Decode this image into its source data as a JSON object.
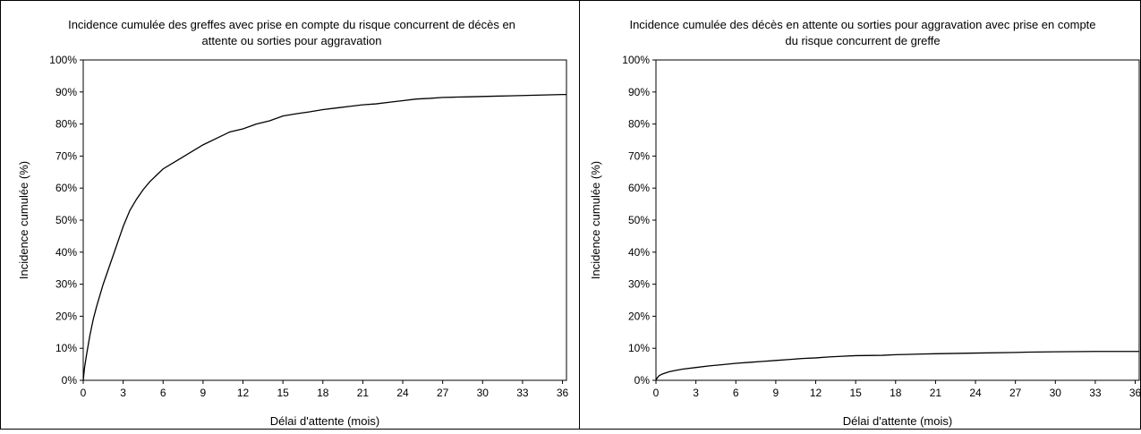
{
  "panels": [
    {
      "title_line1": "Incidence cumulée des greffes avec prise en compte du risque concurrent de décès en",
      "title_line2": "attente ou sorties pour aggravation",
      "ylabel": "Incidence cumulée (%)",
      "xlabel": "Délai d'attente (mois)"
    },
    {
      "title_line1": "Incidence cumulée des décès en attente ou sorties pour aggravation avec prise en compte",
      "title_line2": "du risque concurrent de greffe",
      "ylabel": "Incidence cumulée (%)",
      "xlabel": "Délai d'attente (mois)"
    }
  ],
  "chart_data": [
    {
      "type": "line",
      "title": "Incidence cumulée des greffes avec prise en compte du risque concurrent de décès en attente ou sorties pour aggravation",
      "xlabel": "Délai d'attente (mois)",
      "ylabel": "Incidence cumulée (%)",
      "xlim": [
        0,
        36.3
      ],
      "ylim": [
        0,
        100
      ],
      "xticks": [
        0,
        3,
        6,
        9,
        12,
        15,
        18,
        21,
        24,
        27,
        30,
        33,
        36
      ],
      "yticks": [
        "0%",
        "10%",
        "20%",
        "30%",
        "40%",
        "50%",
        "60%",
        "70%",
        "80%",
        "90%",
        "100%"
      ],
      "grid": false,
      "series": [
        {
          "x": [
            0,
            0.1,
            0.25,
            0.5,
            0.75,
            1,
            1.5,
            2,
            2.5,
            3,
            3.5,
            4,
            4.5,
            5,
            5.5,
            6,
            7,
            8,
            9,
            10,
            11,
            12,
            13,
            14,
            15,
            16,
            17,
            18,
            19,
            20,
            21,
            22,
            23,
            24,
            25,
            26,
            27,
            28,
            29,
            30,
            31,
            32,
            33,
            34,
            35,
            36,
            36.3
          ],
          "y": [
            0,
            4,
            8,
            14,
            19,
            23,
            30,
            36,
            42,
            48,
            53,
            56.5,
            59.5,
            62,
            64,
            66,
            68.5,
            71,
            73.5,
            75.5,
            77.5,
            78.5,
            80,
            81,
            82.5,
            83.2,
            83.8,
            84.5,
            85,
            85.5,
            86,
            86.3,
            86.8,
            87.3,
            87.8,
            88,
            88.3,
            88.4,
            88.5,
            88.6,
            88.7,
            88.8,
            88.9,
            89,
            89.1,
            89.2,
            89.2
          ]
        }
      ]
    },
    {
      "type": "line",
      "title": "Incidence cumulée des décès en attente ou sorties pour aggravation avec prise en compte du risque concurrent de greffe",
      "xlabel": "Délai d'attente (mois)",
      "ylabel": "Incidence cumulée (%)",
      "xlim": [
        0,
        36.3
      ],
      "ylim": [
        0,
        100
      ],
      "xticks": [
        0,
        3,
        6,
        9,
        12,
        15,
        18,
        21,
        24,
        27,
        30,
        33,
        36
      ],
      "yticks": [
        "0%",
        "10%",
        "20%",
        "30%",
        "40%",
        "50%",
        "60%",
        "70%",
        "80%",
        "90%",
        "100%"
      ],
      "grid": false,
      "series": [
        {
          "x": [
            0,
            0.1,
            0.25,
            0.5,
            1,
            1.5,
            2,
            3,
            4,
            5,
            6,
            7,
            8,
            9,
            10,
            11,
            12,
            13,
            14,
            15,
            17,
            18,
            20,
            21,
            24,
            27,
            28,
            30,
            33,
            36,
            36.3
          ],
          "y": [
            0,
            0.8,
            1.5,
            2,
            2.7,
            3.1,
            3.5,
            4,
            4.5,
            4.9,
            5.3,
            5.6,
            5.9,
            6.2,
            6.5,
            6.8,
            7,
            7.3,
            7.5,
            7.7,
            7.8,
            8,
            8.2,
            8.3,
            8.5,
            8.7,
            8.8,
            8.9,
            9,
            9,
            9
          ]
        }
      ]
    }
  ]
}
